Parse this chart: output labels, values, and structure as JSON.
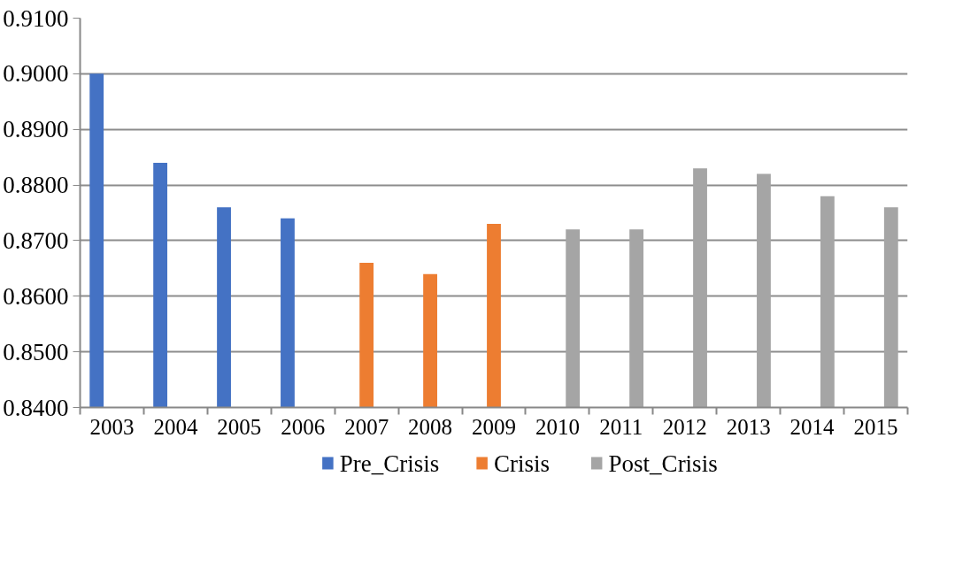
{
  "chart_data": {
    "type": "bar",
    "categories": [
      "2003",
      "2004",
      "2005",
      "2006",
      "2007",
      "2008",
      "2009",
      "2010",
      "2011",
      "2012",
      "2013",
      "2014",
      "2015"
    ],
    "series": [
      {
        "name": "Pre_Crisis",
        "color": "#4472c4",
        "values": [
          0.9,
          0.884,
          0.876,
          0.874,
          null,
          null,
          null,
          null,
          null,
          null,
          null,
          null,
          null
        ]
      },
      {
        "name": "Crisis",
        "color": "#ed7d31",
        "values": [
          null,
          null,
          null,
          null,
          0.866,
          0.864,
          0.873,
          null,
          null,
          null,
          null,
          null,
          null
        ]
      },
      {
        "name": "Post_Crisis",
        "color": "#a5a5a5",
        "values": [
          null,
          null,
          null,
          null,
          null,
          null,
          null,
          0.872,
          0.872,
          0.883,
          0.882,
          0.878,
          0.876
        ]
      }
    ],
    "ylim": [
      0.84,
      0.91
    ],
    "yticks": [
      {
        "value": 0.84,
        "label": "0.8400"
      },
      {
        "value": 0.85,
        "label": "0.8500"
      },
      {
        "value": 0.86,
        "label": "0.8600"
      },
      {
        "value": 0.87,
        "label": "0.8700"
      },
      {
        "value": 0.88,
        "label": "0.8800"
      },
      {
        "value": 0.89,
        "label": "0.8900"
      },
      {
        "value": 0.9,
        "label": "0.9000"
      },
      {
        "value": 0.91,
        "label": "0.9100"
      }
    ],
    "grid": "y",
    "legend": "bottom"
  }
}
